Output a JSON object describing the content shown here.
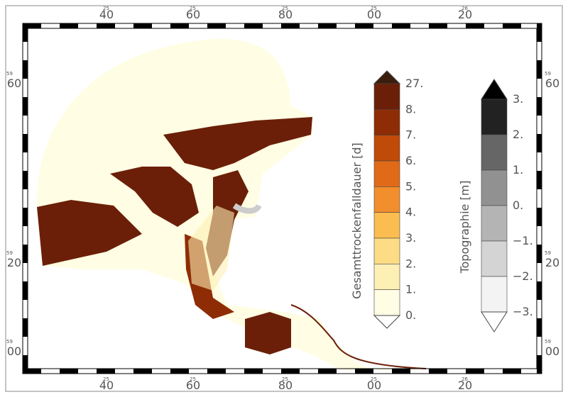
{
  "frame": {
    "top_labels": [
      {
        "small": "25",
        "main": "40"
      },
      {
        "small": "25",
        "main": "60"
      },
      {
        "small": "25",
        "main": "80"
      },
      {
        "small": "25",
        "main": "00"
      },
      {
        "small": "26",
        "main": "20"
      }
    ],
    "bottom_labels": [
      {
        "small": "25",
        "main": "40"
      },
      {
        "small": "25",
        "main": "60"
      },
      {
        "small": "25",
        "main": "80"
      },
      {
        "small": "25",
        "main": "00"
      },
      {
        "small": "26",
        "main": "20"
      }
    ],
    "left_labels": [
      {
        "small": "59",
        "main": "60"
      },
      {
        "small": "59",
        "main": "20"
      },
      {
        "small": "59",
        "main": "00"
      }
    ],
    "right_labels": [
      {
        "small": "59",
        "main": "60"
      },
      {
        "small": "59",
        "main": "20"
      },
      {
        "small": "59",
        "main": "00"
      }
    ]
  },
  "legends": [
    {
      "title": "Gesamttrockenfalldauer [d]",
      "labels": [
        "27.",
        "8.",
        "7.",
        "6.",
        "5.",
        "4.",
        "3.",
        "2.",
        "1.",
        "0."
      ],
      "colors": [
        "#3b1d0c",
        "#6b1f08",
        "#8e2d05",
        "#c04a08",
        "#e06a18",
        "#f28e2c",
        "#fbbd4f",
        "#fddc86",
        "#fef0b4",
        "#fffde3",
        "#ffffff"
      ]
    },
    {
      "title": "Topographie [m]",
      "labels": [
        "3.",
        "2.",
        "1.",
        "0.",
        "−1.",
        "−2.",
        "−3."
      ],
      "colors": [
        "#000000",
        "#222222",
        "#666666",
        "#919191",
        "#b4b4b4",
        "#d4d4d4",
        "#f3f3f3",
        "#ffffff"
      ]
    }
  ]
}
